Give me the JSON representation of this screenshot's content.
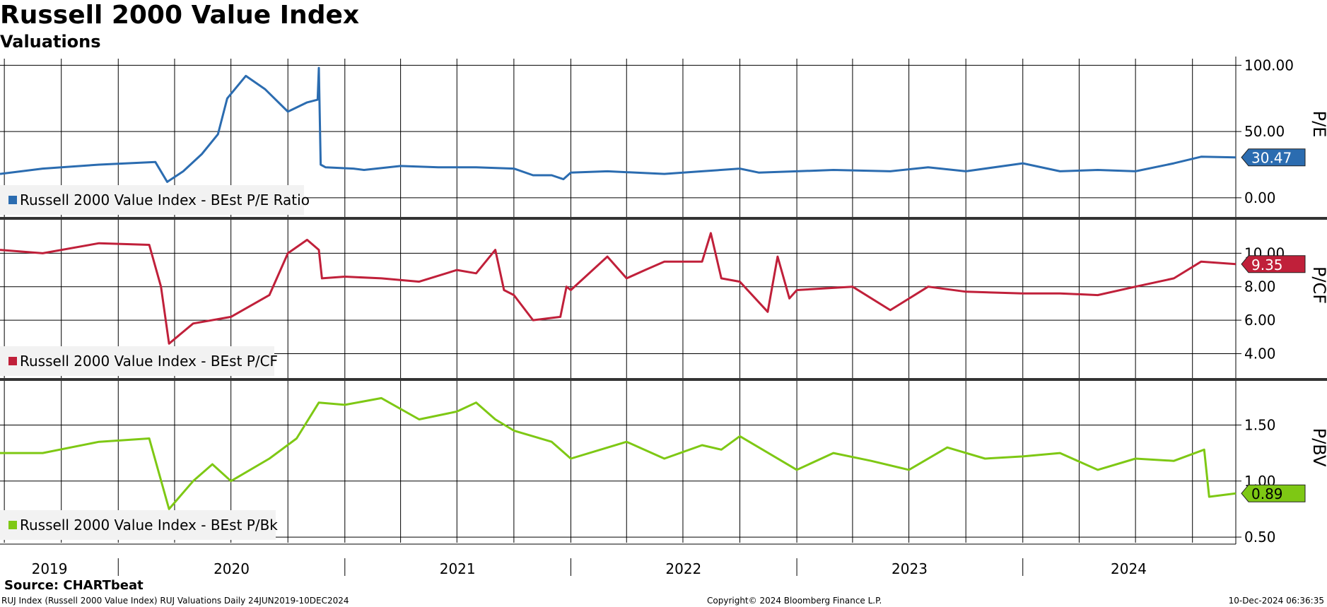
{
  "header": {
    "title": "Russell 2000 Value Index",
    "subtitle": "Valuations"
  },
  "footer": {
    "source": "Source: CHARTbeat",
    "left": "RUJ Index (Russell 2000 Value Index) RUJ Valuations  Daily 24JUN2019-10DEC2024",
    "center": "Copyright© 2024 Bloomberg Finance L.P.",
    "right": "10-Dec-2024 06:36:35"
  },
  "chart_data": [
    {
      "type": "line",
      "ylabel": "P/E",
      "ylim": [
        -15,
        105
      ],
      "yticks": [
        0,
        50,
        100
      ],
      "ytick_labels": [
        "0.00",
        "50.00",
        "100.00"
      ],
      "color": "#2b6cb0",
      "legend_label": "Russell 2000 Value Index - BEst P/E Ratio",
      "last_value_label": "30.47",
      "last_value": 30.47,
      "x": [
        "2019-06-24",
        "2019-09-01",
        "2019-12-01",
        "2020-03-01",
        "2020-03-20",
        "2020-04-15",
        "2020-05-15",
        "2020-06-10",
        "2020-06-25",
        "2020-07-25",
        "2020-08-25",
        "2020-10-01",
        "2020-11-01",
        "2020-11-18",
        "2020-11-20",
        "2020-11-23",
        "2020-12-01",
        "2021-01-15",
        "2021-02-01",
        "2021-04-01",
        "2021-06-01",
        "2021-08-01",
        "2021-10-01",
        "2021-11-01",
        "2021-12-01",
        "2021-12-20",
        "2022-01-01",
        "2022-03-01",
        "2022-06-01",
        "2022-08-01",
        "2022-10-01",
        "2022-11-01",
        "2023-01-01",
        "2023-03-01",
        "2023-06-01",
        "2023-08-01",
        "2023-10-01",
        "2024-01-01",
        "2024-03-01",
        "2024-05-01",
        "2024-07-01",
        "2024-09-01",
        "2024-10-15",
        "2024-12-10"
      ],
      "values": [
        18,
        22,
        25,
        27,
        12,
        20,
        33,
        48,
        75,
        92,
        82,
        65,
        72,
        74,
        98,
        25,
        23,
        22,
        21,
        24,
        23,
        23,
        22,
        17,
        17,
        14,
        19,
        20,
        18,
        20,
        22,
        19,
        20,
        21,
        20,
        23,
        20,
        26,
        20,
        21,
        20,
        26,
        31,
        30.47
      ]
    },
    {
      "type": "line",
      "ylabel": "P/CF",
      "ylim": [
        2.5,
        12
      ],
      "yticks": [
        4,
        6,
        8,
        10
      ],
      "ytick_labels": [
        "4.00",
        "6.00",
        "8.00",
        "10.00"
      ],
      "color": "#c0203a",
      "legend_label": "Russell 2000 Value Index - BEst P/CF",
      "last_value_label": "9.35",
      "last_value": 9.35,
      "x": [
        "2019-06-24",
        "2019-09-01",
        "2019-12-01",
        "2020-02-20",
        "2020-03-10",
        "2020-03-23",
        "2020-05-01",
        "2020-07-01",
        "2020-09-01",
        "2020-10-01",
        "2020-11-01",
        "2020-11-20",
        "2020-11-25",
        "2021-01-01",
        "2021-03-01",
        "2021-05-01",
        "2021-07-01",
        "2021-08-01",
        "2021-09-01",
        "2021-09-15",
        "2021-10-01",
        "2021-11-01",
        "2021-12-15",
        "2021-12-25",
        "2022-01-01",
        "2022-03-01",
        "2022-04-01",
        "2022-05-01",
        "2022-06-01",
        "2022-08-01",
        "2022-08-15",
        "2022-09-01",
        "2022-10-01",
        "2022-11-15",
        "2022-12-01",
        "2022-12-20",
        "2023-01-01",
        "2023-04-01",
        "2023-06-01",
        "2023-08-01",
        "2023-10-01",
        "2024-01-01",
        "2024-03-01",
        "2024-05-01",
        "2024-07-01",
        "2024-09-01",
        "2024-10-15",
        "2024-12-10"
      ],
      "values": [
        10.2,
        10.0,
        10.6,
        10.5,
        8.0,
        4.6,
        5.8,
        6.2,
        7.5,
        10.0,
        10.8,
        10.2,
        8.5,
        8.6,
        8.5,
        8.3,
        9.0,
        8.8,
        10.2,
        7.8,
        7.5,
        6.0,
        6.2,
        8.0,
        7.8,
        9.8,
        8.5,
        9.0,
        9.5,
        9.5,
        11.2,
        8.5,
        8.3,
        6.5,
        9.8,
        7.3,
        7.8,
        8.0,
        6.6,
        8.0,
        7.7,
        7.6,
        7.6,
        7.5,
        8.0,
        8.5,
        9.5,
        9.35
      ]
    },
    {
      "type": "line",
      "ylabel": "P/BV",
      "ylim": [
        0.45,
        1.9
      ],
      "yticks": [
        0.5,
        1.0,
        1.5
      ],
      "ytick_labels": [
        "0.50",
        "1.00",
        "1.50"
      ],
      "color": "#7ec814",
      "legend_label": "Russell 2000 Value Index - BEst P/Bk",
      "last_value_label": "0.89",
      "last_value": 0.89,
      "x": [
        "2019-06-24",
        "2019-09-01",
        "2019-12-01",
        "2020-02-20",
        "2020-03-23",
        "2020-05-01",
        "2020-06-01",
        "2020-07-01",
        "2020-09-01",
        "2020-10-15",
        "2020-11-20",
        "2021-01-01",
        "2021-03-01",
        "2021-05-01",
        "2021-07-01",
        "2021-08-01",
        "2021-09-01",
        "2021-10-01",
        "2021-12-01",
        "2022-01-01",
        "2022-04-01",
        "2022-06-01",
        "2022-08-01",
        "2022-09-01",
        "2022-10-01",
        "2023-01-01",
        "2023-03-01",
        "2023-05-01",
        "2023-07-01",
        "2023-09-01",
        "2023-11-01",
        "2024-01-01",
        "2024-03-01",
        "2024-05-01",
        "2024-07-01",
        "2024-09-01",
        "2024-10-20",
        "2024-10-28",
        "2024-12-10"
      ],
      "values": [
        1.25,
        1.25,
        1.35,
        1.38,
        0.75,
        1.0,
        1.15,
        1.0,
        1.2,
        1.38,
        1.7,
        1.68,
        1.74,
        1.55,
        1.62,
        1.7,
        1.55,
        1.45,
        1.35,
        1.2,
        1.35,
        1.2,
        1.32,
        1.28,
        1.4,
        1.1,
        1.25,
        1.18,
        1.1,
        1.3,
        1.2,
        1.22,
        1.25,
        1.1,
        1.2,
        1.18,
        1.28,
        0.86,
        0.89
      ]
    }
  ],
  "x_axis": {
    "start": "2019-06-24",
    "end": "2024-12-10",
    "year_labels": [
      {
        "label": "2019",
        "center": "2019-09-12"
      },
      {
        "label": "2020",
        "center": "2020-07-02"
      },
      {
        "label": "2021",
        "center": "2021-07-02"
      },
      {
        "label": "2022",
        "center": "2022-07-02"
      },
      {
        "label": "2023",
        "center": "2023-07-02"
      },
      {
        "label": "2024",
        "center": "2024-06-20"
      }
    ],
    "year_boundaries": [
      "2020-01-01",
      "2021-01-01",
      "2022-01-01",
      "2023-01-01",
      "2024-01-01"
    ],
    "gridlines": [
      "2019-07-01",
      "2019-10-01",
      "2020-01-01",
      "2020-04-01",
      "2020-07-01",
      "2020-10-01",
      "2021-01-01",
      "2021-04-01",
      "2021-07-01",
      "2021-10-01",
      "2022-01-01",
      "2022-04-01",
      "2022-07-01",
      "2022-10-01",
      "2023-01-01",
      "2023-04-01",
      "2023-07-01",
      "2023-10-01",
      "2024-01-01",
      "2024-04-01",
      "2024-07-01",
      "2024-10-01"
    ]
  }
}
